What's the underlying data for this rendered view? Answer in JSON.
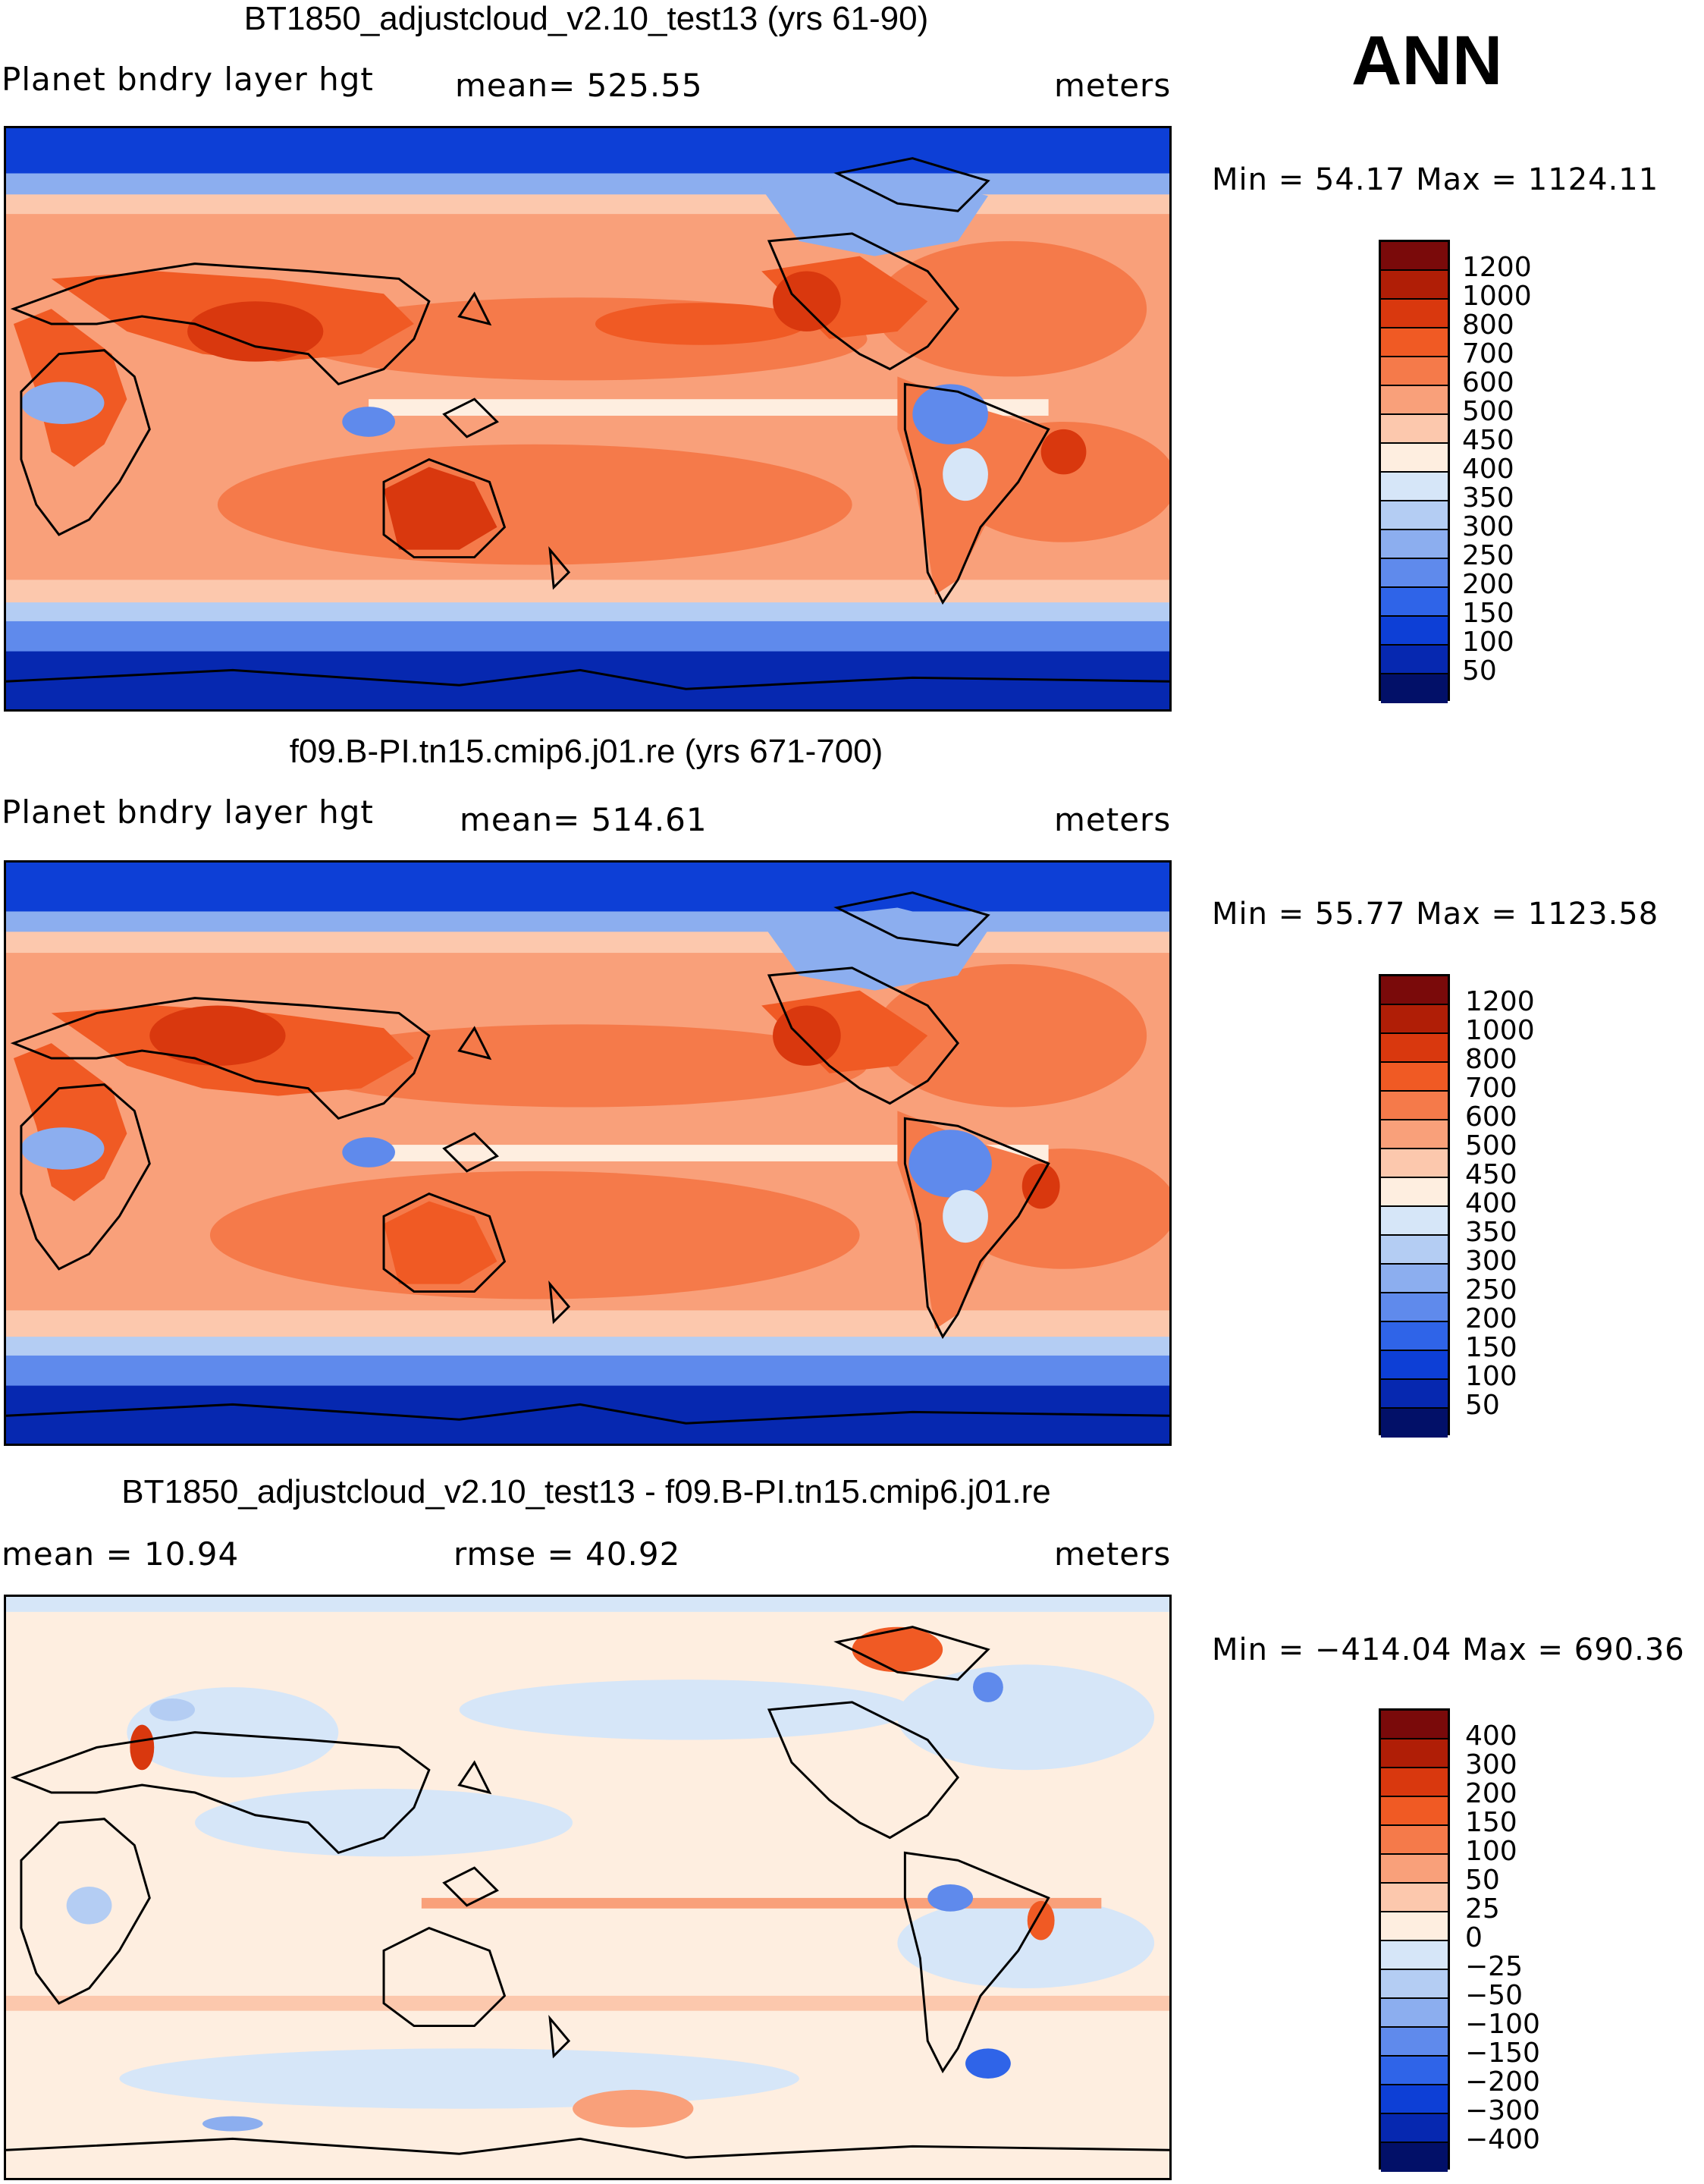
{
  "season": "ANN",
  "units": "meters",
  "panels": [
    {
      "title": "BT1850_adjustcloud_v2.10_test13 (yrs 61-90)",
      "variable": "Planet bndry layer hgt",
      "stat_text": "mean=  525.55",
      "minmax_text": "Min =   54.17  Max  =  1124.11",
      "colorbar": {
        "labels": [
          "1200",
          "1000",
          "800",
          "700",
          "600",
          "500",
          "450",
          "400",
          "350",
          "300",
          "250",
          "200",
          "150",
          "100",
          "50"
        ],
        "colors": [
          "#7a0a0a",
          "#b01e06",
          "#d9380e",
          "#f05a24",
          "#f57a4a",
          "#f9a07a",
          "#fcc8ad",
          "#feeee0",
          "#d6e6f8",
          "#b4cdf3",
          "#8caeef",
          "#5f8aec",
          "#2f64e8",
          "#0d3fd6",
          "#0628b0",
          "#021068"
        ]
      }
    },
    {
      "title": "f09.B-PI.tn15.cmip6.j01.re (yrs 671-700)",
      "variable": "Planet bndry layer hgt",
      "stat_text": "mean=  514.61",
      "minmax_text": "Min =   55.77  Max  =  1123.58",
      "colorbar": {
        "labels": [
          "1200",
          "1000",
          "800",
          "700",
          "600",
          "500",
          "450",
          "400",
          "350",
          "300",
          "250",
          "200",
          "150",
          "100",
          "50"
        ],
        "colors": [
          "#7a0a0a",
          "#b01e06",
          "#d9380e",
          "#f05a24",
          "#f57a4a",
          "#f9a07a",
          "#fcc8ad",
          "#feeee0",
          "#d6e6f8",
          "#b4cdf3",
          "#8caeef",
          "#5f8aec",
          "#2f64e8",
          "#0d3fd6",
          "#0628b0",
          "#021068"
        ]
      }
    },
    {
      "title": "BT1850_adjustcloud_v2.10_test13 - f09.B-PI.tn15.cmip6.j01.re",
      "mean_text": "mean =    10.94",
      "rmse_text": "rmse =    40.92",
      "minmax_text": "Min  =  −414.04  Max  =  690.36",
      "colorbar": {
        "labels": [
          "400",
          "300",
          "200",
          "150",
          "100",
          "50",
          "25",
          "0",
          "−25",
          "−50",
          "−100",
          "−150",
          "−200",
          "−300",
          "−400"
        ],
        "colors": [
          "#7a0a0a",
          "#b01e06",
          "#d9380e",
          "#f05a24",
          "#f57a4a",
          "#f9a07a",
          "#fcc8ad",
          "#feeee0",
          "#d6e6f8",
          "#b4cdf3",
          "#8caeef",
          "#5f8aec",
          "#2f64e8",
          "#0d3fd6",
          "#0628b0",
          "#021068"
        ]
      }
    }
  ]
}
